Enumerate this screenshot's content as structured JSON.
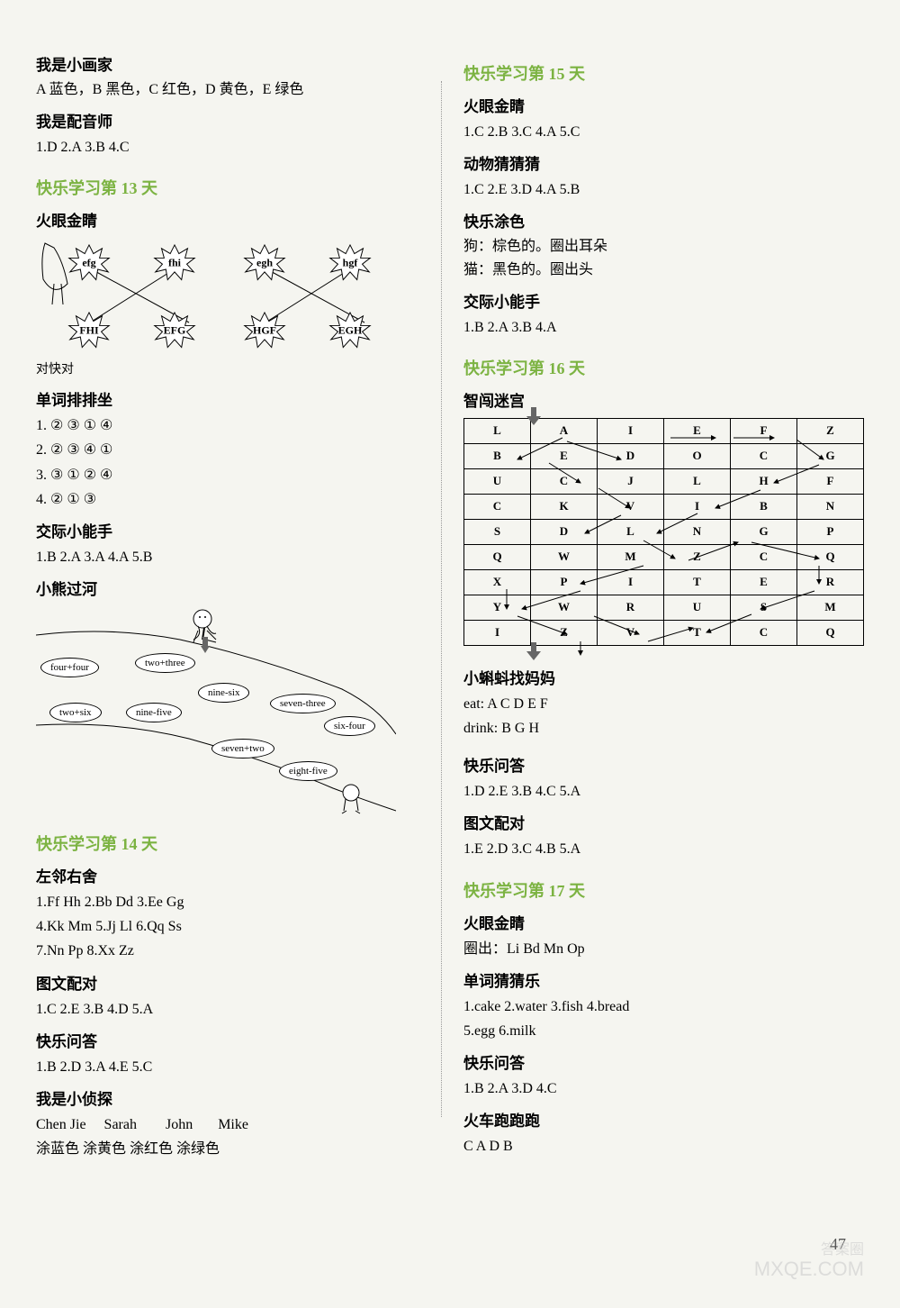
{
  "left": {
    "s1_title": "我是小画家",
    "s1_text": "A 蓝色，B 黑色，C 红色，D 黄色，E 绿色",
    "s2_title": "我是配音师",
    "s2_answers": "1.D   2.A   3.B   4.C",
    "day13": "快乐学习第 13 天",
    "d13_sub1": "火眼金睛",
    "d13_stars_top": [
      "efg",
      "fhi",
      "egh",
      "hgf"
    ],
    "d13_stars_bot": [
      "FHI",
      "EFG",
      "HGF",
      "EGH"
    ],
    "d13_pair": "对快对",
    "d13_sub2": "单词排排坐",
    "d13_seq": [
      "1. ②   ③   ①   ④",
      "2. ②   ③   ④   ①",
      "3. ③   ①   ②   ④",
      "4. ②   ①   ③"
    ],
    "d13_sub3": "交际小能手",
    "d13_ans3": "1.B   2.A   3.A   4.A   5.B",
    "d13_sub4": "小熊过河",
    "d13_bubbles": [
      "four+four",
      "two+three",
      "two+six",
      "nine-five",
      "nine-six",
      "seven-three",
      "six-four",
      "seven+two",
      "eight-five"
    ],
    "day14": "快乐学习第 14 天",
    "d14_sub1": "左邻右舍",
    "d14_lines": [
      "1.Ff   Hh   2.Bb   Dd   3.Ee   Gg",
      "4.Kk   Mm   5.Jj   Ll   6.Qq   Ss",
      "7.Nn   Pp   8.Xx   Zz"
    ],
    "d14_sub2": "图文配对",
    "d14_ans2": "1.C   2.E   3.B   4.D   5.A",
    "d14_sub3": "快乐问答",
    "d14_ans3": "1.B   2.D   3.A   4.E   5.C",
    "d14_sub4": "我是小侦探",
    "d14_names": "Chen Jie     Sarah        John       Mike",
    "d14_colors": "涂蓝色   涂黄色   涂红色   涂绿色"
  },
  "right": {
    "day15": "快乐学习第 15 天",
    "d15_sub1": "火眼金睛",
    "d15_ans1": "1.C   2.B   3.C   4.A   5.C",
    "d15_sub2": "动物猜猜猜",
    "d15_ans2": "1.C   2.E   3.D   4.A   5.B",
    "d15_sub3": "快乐涂色",
    "d15_line1": "狗：棕色的。圈出耳朵",
    "d15_line2": "猫：黑色的。圈出头",
    "d15_sub4": "交际小能手",
    "d15_ans4": "1.B   2.A   3.B   4.A",
    "day16": "快乐学习第 16 天",
    "d16_sub1": "智闯迷宫",
    "d16_grid": [
      [
        "L",
        "A",
        "I",
        "E",
        "F",
        "Z"
      ],
      [
        "B",
        "E",
        "D",
        "O",
        "C",
        "G"
      ],
      [
        "U",
        "C",
        "J",
        "L",
        "H",
        "F"
      ],
      [
        "C",
        "K",
        "V",
        "I",
        "B",
        "N"
      ],
      [
        "S",
        "D",
        "L",
        "N",
        "G",
        "P"
      ],
      [
        "Q",
        "W",
        "M",
        "Z",
        "C",
        "Q"
      ],
      [
        "X",
        "P",
        "I",
        "T",
        "E",
        "R"
      ],
      [
        "Y",
        "W",
        "R",
        "U",
        "S",
        "M"
      ],
      [
        "I",
        "Z",
        "V",
        "T",
        "C",
        "Q"
      ]
    ],
    "d16_sub2": "小蝌蚪找妈妈",
    "d16_eat": "eat: A   C   D   E   F",
    "d16_drink": "drink: B   G   H",
    "d16_sub3": "快乐问答",
    "d16_ans3": "1.D   2.E   3.B   4.C   5.A",
    "d16_sub4": "图文配对",
    "d16_ans4": "1.E   2.D   3.C   4.B   5.A",
    "day17": "快乐学习第 17 天",
    "d17_sub1": "火眼金睛",
    "d17_line1": "圈出：Li   Bd   Mn   Op",
    "d17_sub2": "单词猜猜乐",
    "d17_ans2a": "1.cake   2.water   3.fish   4.bread",
    "d17_ans2b": "5.egg   6.milk",
    "d17_sub3": "快乐问答",
    "d17_ans3": "1.B   2.A   3.D   4.C",
    "d17_sub4": "火车跑跑跑",
    "d17_ans4": "C   A   D   B"
  },
  "pagenum": "47",
  "wm1": "答案圈",
  "wm2": "MXQE.COM"
}
